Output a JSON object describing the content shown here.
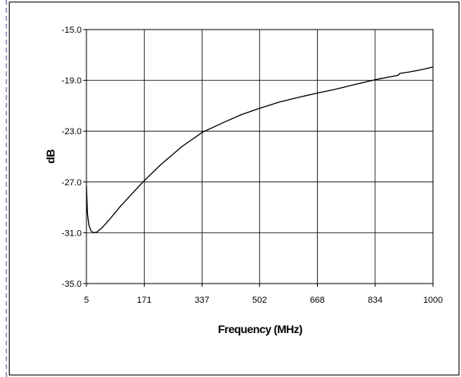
{
  "chart_data": {
    "type": "line",
    "title": "",
    "xlabel": "Frequency (MHz)",
    "ylabel": "dB",
    "xlim": [
      5,
      1000
    ],
    "ylim": [
      -35.0,
      -15.0
    ],
    "x_ticks": [
      "5",
      "171",
      "337",
      "502",
      "668",
      "834",
      "1000"
    ],
    "y_ticks": [
      "-15.0",
      "-19.0",
      "-23.0",
      "-27.0",
      "-31.0",
      "-35.0"
    ],
    "grid": true,
    "legend": "none",
    "line_color": "#000000",
    "series": [
      {
        "x": [
          5,
          8,
          12,
          18,
          25,
          35,
          50,
          70,
          100,
          140,
          171,
          220,
          280,
          337,
          400,
          450,
          502,
          560,
          620,
          668,
          720,
          780,
          834,
          880,
          900,
          905,
          930,
          960,
          1000
        ],
        "y": [
          -27.3,
          -29.5,
          -30.4,
          -30.85,
          -31.0,
          -30.95,
          -30.6,
          -30.0,
          -29.0,
          -27.8,
          -26.9,
          -25.6,
          -24.2,
          -23.1,
          -22.3,
          -21.7,
          -21.2,
          -20.7,
          -20.3,
          -20.0,
          -19.7,
          -19.3,
          -18.95,
          -18.7,
          -18.6,
          -18.45,
          -18.35,
          -18.2,
          -17.95
        ]
      }
    ]
  }
}
